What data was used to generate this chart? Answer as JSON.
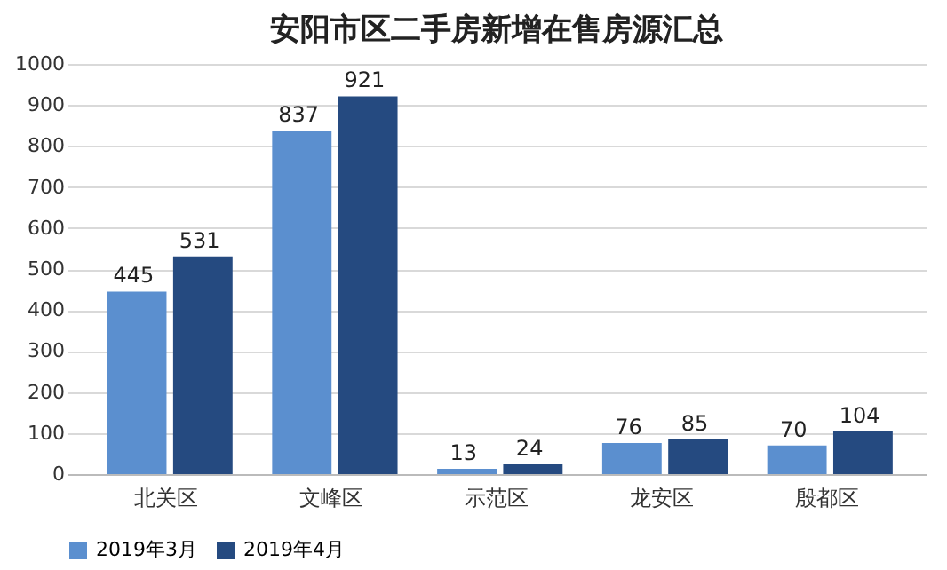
{
  "chart_data": {
    "type": "bar",
    "title": "安阳市区二手房新增在售房源汇总",
    "categories": [
      "北关区",
      "文峰区",
      "示范区",
      "龙安区",
      "殷都区"
    ],
    "series": [
      {
        "name": "2019年3月",
        "color": "#5b8fcf",
        "values": [
          445,
          837,
          13,
          76,
          70
        ]
      },
      {
        "name": "2019年4月",
        "color": "#254a80",
        "values": [
          531,
          921,
          24,
          85,
          104
        ]
      }
    ],
    "ylim": [
      0,
      1000
    ],
    "yticks": [
      0,
      100,
      200,
      300,
      400,
      500,
      600,
      700,
      800,
      900,
      1000
    ],
    "grid": "y",
    "legend": "bottom",
    "data_labels": true
  }
}
